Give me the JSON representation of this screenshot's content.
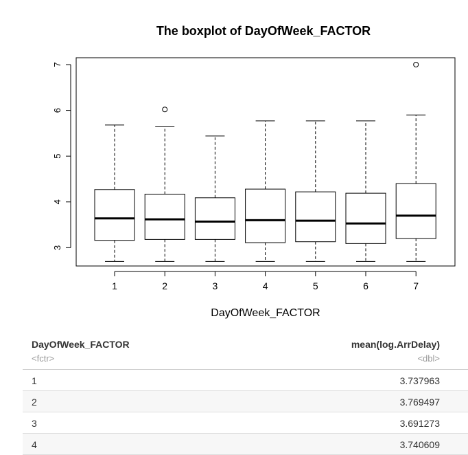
{
  "chart_data": {
    "type": "boxplot",
    "title": "The boxplot of DayOfWeek_FACTOR",
    "xlabel": "DayOfWeek_FACTOR",
    "ylabel": "",
    "categories": [
      "1",
      "2",
      "3",
      "4",
      "5",
      "6",
      "7"
    ],
    "ylim": [
      2.6,
      7.15
    ],
    "yticks": [
      3,
      4,
      5,
      6,
      7
    ],
    "boxes": [
      {
        "whisker_low": 2.7,
        "q1": 3.16,
        "median": 3.64,
        "q3": 4.27,
        "whisker_high": 5.68,
        "outliers": []
      },
      {
        "whisker_low": 2.7,
        "q1": 3.18,
        "median": 3.62,
        "q3": 4.17,
        "whisker_high": 5.64,
        "outliers": [
          6.02
        ]
      },
      {
        "whisker_low": 2.7,
        "q1": 3.18,
        "median": 3.57,
        "q3": 4.09,
        "whisker_high": 5.44,
        "outliers": []
      },
      {
        "whisker_low": 2.7,
        "q1": 3.11,
        "median": 3.6,
        "q3": 4.28,
        "whisker_high": 5.77,
        "outliers": []
      },
      {
        "whisker_low": 2.7,
        "q1": 3.13,
        "median": 3.59,
        "q3": 4.22,
        "whisker_high": 5.77,
        "outliers": []
      },
      {
        "whisker_low": 2.7,
        "q1": 3.09,
        "median": 3.53,
        "q3": 4.19,
        "whisker_high": 5.77,
        "outliers": []
      },
      {
        "whisker_low": 2.7,
        "q1": 3.2,
        "median": 3.7,
        "q3": 4.4,
        "whisker_high": 5.9,
        "outliers": [
          7.0
        ]
      }
    ],
    "grid": false
  },
  "table": {
    "col1_header": "DayOfWeek_FACTOR",
    "col1_type": "<fctr>",
    "col2_header": "mean(log.ArrDelay)",
    "col2_type": "<dbl>",
    "rows": [
      {
        "day": "1",
        "mean": "3.737963"
      },
      {
        "day": "2",
        "mean": "3.769497"
      },
      {
        "day": "3",
        "mean": "3.691273"
      },
      {
        "day": "4",
        "mean": "3.740609"
      }
    ]
  }
}
